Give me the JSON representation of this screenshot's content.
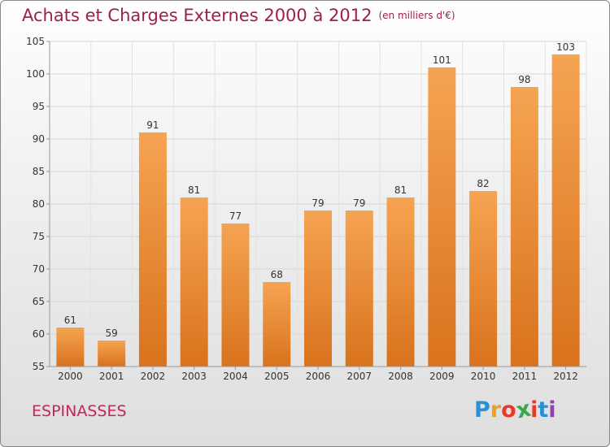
{
  "title": "Achats et Charges Externes 2000 à 2012",
  "subtitle": "(en milliers d'€)",
  "commune": "ESPINASSES",
  "logo": {
    "letters": [
      "P",
      "r",
      "o",
      "x",
      "i",
      "t",
      "i"
    ],
    "colors": [
      "#2a8fd6",
      "#f0a020",
      "#e63a2a",
      "#3aa64a",
      "#e63a2a",
      "#2a8fd6",
      "#8c44b0"
    ]
  },
  "chart_data": {
    "type": "bar",
    "title": "Achats et Charges Externes 2000 à 2012",
    "subtitle": "(en milliers d'€)",
    "categories": [
      "2000",
      "2001",
      "2002",
      "2003",
      "2004",
      "2005",
      "2006",
      "2007",
      "2008",
      "2009",
      "2010",
      "2011",
      "2012"
    ],
    "values": [
      61,
      59,
      91,
      81,
      77,
      68,
      79,
      79,
      81,
      101,
      82,
      98,
      103
    ],
    "ylim": [
      55,
      105
    ],
    "yticks": [
      55,
      60,
      65,
      70,
      75,
      80,
      85,
      90,
      95,
      100,
      105
    ],
    "grid": true,
    "bar_color_top": "#f5a452",
    "bar_color_bottom": "#d9721c"
  }
}
